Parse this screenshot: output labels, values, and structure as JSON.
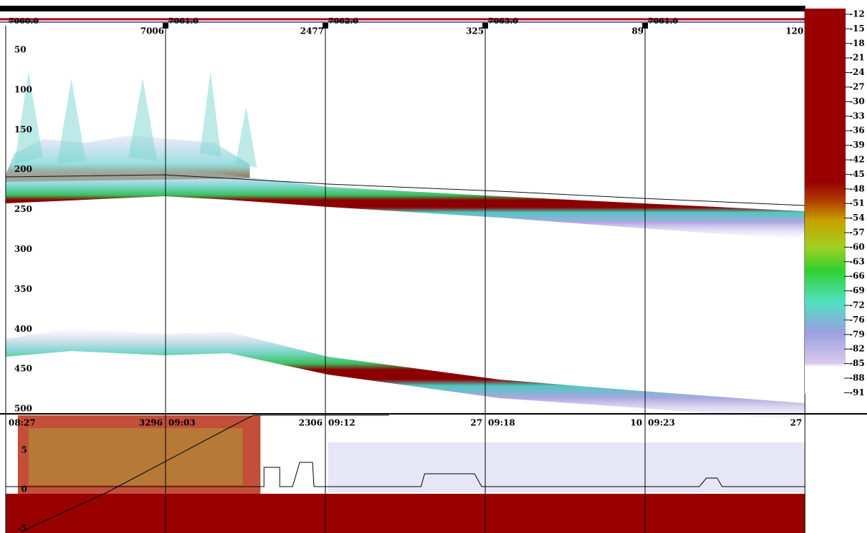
{
  "top": {
    "segments": [
      {
        "label": "7060.0",
        "count": "7006"
      },
      {
        "label": "7061.0",
        "count": "2477"
      },
      {
        "label": "7062.0",
        "count": "325"
      },
      {
        "label": "7063.0",
        "count": "89"
      },
      {
        "label": "7061.0",
        "count": "120"
      }
    ]
  },
  "depth_axis": {
    "ticks": [
      "50",
      "100",
      "150",
      "200",
      "250",
      "300",
      "350",
      "400",
      "450",
      "500"
    ]
  },
  "color_scale": {
    "labels": [
      "-12",
      "-15",
      "-18",
      "-21",
      "-24",
      "-27",
      "-30",
      "-33",
      "-36",
      "-39",
      "-42",
      "-45",
      "-48",
      "-51",
      "-54",
      "-57",
      "-60",
      "-63",
      "-66",
      "-69",
      "-72",
      "-76",
      "-79",
      "-82",
      "-85",
      "-88",
      "-91"
    ]
  },
  "lower_panel": {
    "ticks": [
      "5",
      "0",
      "-5"
    ],
    "segments": [
      {
        "time": "08:27",
        "count": "3296"
      },
      {
        "time": "09:03",
        "count": "2306"
      },
      {
        "time": "09:12",
        "count": "27"
      },
      {
        "time": "09:18",
        "count": "10"
      },
      {
        "time": "09:23",
        "count": "27"
      }
    ]
  }
}
